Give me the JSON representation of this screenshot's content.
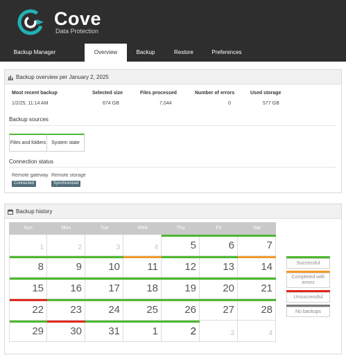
{
  "brand": {
    "name": "Cove",
    "subtitle": "Data Protection",
    "accent": "#23b1b5"
  },
  "nav": {
    "items": [
      "Backup Manager",
      "Overview",
      "Backup",
      "Restore",
      "Preferences"
    ],
    "active": "Overview"
  },
  "overview": {
    "title": "Backup overview per January 2, 2025",
    "stats": [
      {
        "label": "Most recent backup",
        "value": "1/2/25, 11:14 AM"
      },
      {
        "label": "Selected size",
        "value": "674 GB"
      },
      {
        "label": "Files processed",
        "value": "7,044"
      },
      {
        "label": "Number of errors",
        "value": "0"
      },
      {
        "label": "Used storage",
        "value": "577 GB"
      }
    ],
    "sources_title": "Backup sources",
    "sources": [
      "Files and folders",
      "System state"
    ],
    "connection_title": "Connection status",
    "connection": [
      {
        "label": "Remote gateway",
        "status": "Connected"
      },
      {
        "label": "Remote storage",
        "status": "Synchronized"
      }
    ]
  },
  "history": {
    "title": "Backup history",
    "days": [
      "Sun",
      "Mon",
      "Tue",
      "Wed",
      "Thu",
      "Fri",
      "Sat"
    ],
    "status_colors": {
      "success": "#4cb830",
      "warning": "#f39a2e",
      "failed": "#e0281e",
      "none": "#7a7a7a"
    },
    "weeks": [
      [
        {
          "d": "1",
          "m": true
        },
        {
          "d": "2",
          "m": true
        },
        {
          "d": "3",
          "m": true
        },
        {
          "d": "4",
          "m": true
        },
        {
          "d": "5",
          "s": "success"
        },
        {
          "d": "6",
          "s": "success"
        },
        {
          "d": "7",
          "s": "success"
        }
      ],
      [
        {
          "d": "8",
          "s": "success"
        },
        {
          "d": "9",
          "s": "success"
        },
        {
          "d": "10",
          "s": "success"
        },
        {
          "d": "11",
          "s": "warning"
        },
        {
          "d": "12",
          "s": "success"
        },
        {
          "d": "13",
          "s": "success"
        },
        {
          "d": "14",
          "s": "warning"
        }
      ],
      [
        {
          "d": "15",
          "s": "success"
        },
        {
          "d": "16",
          "s": "success"
        },
        {
          "d": "17",
          "s": "success"
        },
        {
          "d": "18",
          "s": "success"
        },
        {
          "d": "19",
          "s": "success"
        },
        {
          "d": "20",
          "s": "success"
        },
        {
          "d": "21",
          "s": "success"
        }
      ],
      [
        {
          "d": "22",
          "s": "failed"
        },
        {
          "d": "23",
          "s": "success"
        },
        {
          "d": "24",
          "s": "success"
        },
        {
          "d": "25",
          "s": "success"
        },
        {
          "d": "26",
          "s": "success"
        },
        {
          "d": "27",
          "s": "success"
        },
        {
          "d": "28",
          "s": "success"
        }
      ],
      [
        {
          "d": "29",
          "s": "success"
        },
        {
          "d": "30",
          "s": "failed"
        },
        {
          "d": "31",
          "s": "success"
        },
        {
          "d": "1",
          "s": "success"
        },
        {
          "d": "2",
          "s": "success",
          "today": true
        },
        {
          "d": "3",
          "m": true
        },
        {
          "d": "4",
          "m": true
        }
      ]
    ],
    "legend": [
      {
        "key": "success",
        "label": "Successful"
      },
      {
        "key": "warning",
        "label": "Completed with errors"
      },
      {
        "key": "failed",
        "label": "Unsuccessful"
      },
      {
        "key": "none",
        "label": "No backups"
      }
    ]
  }
}
